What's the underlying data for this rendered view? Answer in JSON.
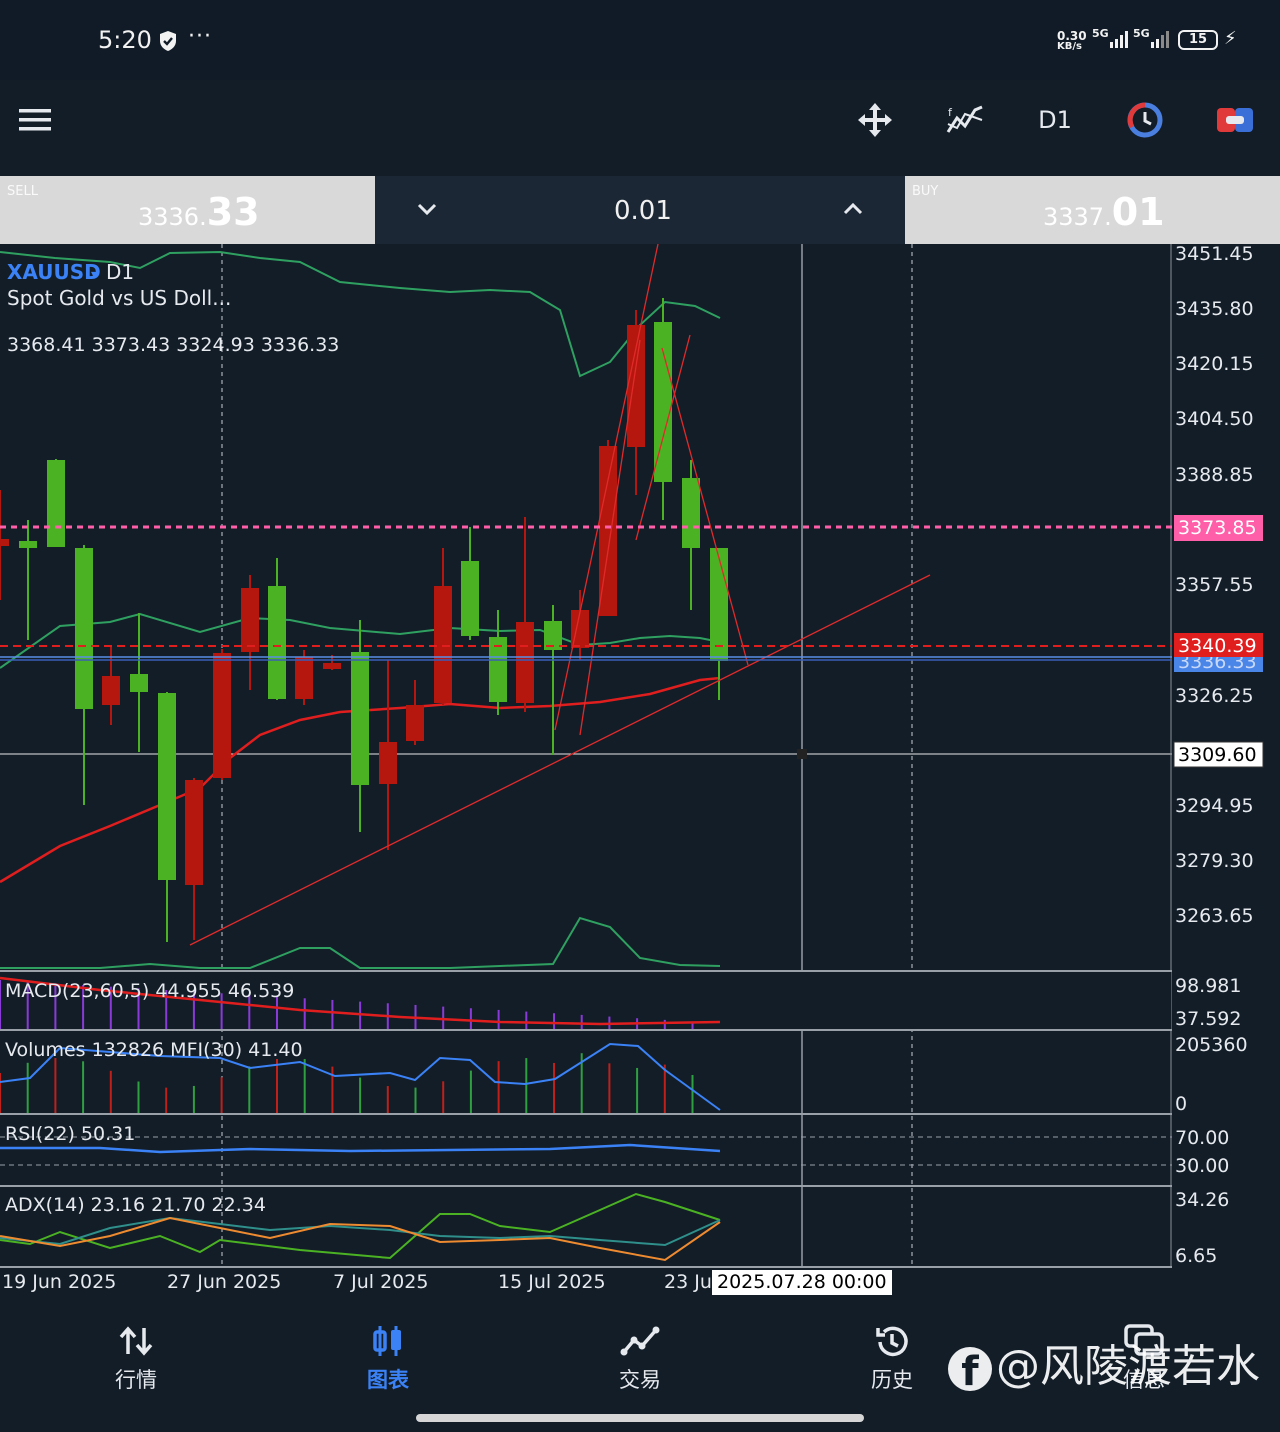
{
  "status_bar": {
    "time": "5:20",
    "net_speed_value": "0.30",
    "net_speed_unit": "KB/s",
    "sig1": "5G",
    "sig2": "5G",
    "battery": "15"
  },
  "toolbar": {
    "timeframe": "D1",
    "icons": [
      "menu-icon",
      "crosshair-move-icon",
      "indicators-icon",
      "timer-icon",
      "one-click-trading-icon"
    ]
  },
  "trade_bar": {
    "sell_label": "SELL",
    "sell_price_prefix": "3336.",
    "sell_price_big": "33",
    "buy_label": "BUY",
    "buy_price_prefix": "3337.",
    "buy_price_big": "01",
    "lot": "0.01"
  },
  "chart": {
    "symbol": "XAUUSD",
    "symbol_caret": "▾",
    "timeframe": "D1",
    "description": "Spot Gold vs US Doll...",
    "ohlc": "3368.41 3373.43 3324.93 3336.33",
    "price_labels": [
      "3451.45",
      "3435.80",
      "3420.15",
      "3404.50",
      "3388.85",
      "3373.85",
      "3357.55",
      "3340.39",
      "3336.33",
      "3326.25",
      "3309.60",
      "3294.95",
      "3279.30",
      "3263.65"
    ],
    "badges": {
      "pink_line": "3373.85",
      "red_line": "3340.39",
      "bid_line": "3336.33",
      "crosshair": "3309.60"
    },
    "date_labels": [
      "19 Jun 2025",
      "27 Jun 2025",
      "7 Jul 2025",
      "15 Jul 2025",
      "23 Ju"
    ],
    "crosshair_date": "2025.07.28 00:00",
    "colors": {
      "bull": "#4bb223",
      "bear": "#b5170f",
      "bands": "#2fa060",
      "ma": "#e01e1e",
      "pink": "#ff5ea8",
      "bid": "#5b8ee6"
    }
  },
  "indicators": {
    "macd": {
      "label": "MACD(23,60,5) 44.955 46.539",
      "scale_top": "98.981",
      "scale_bottom": "37.592"
    },
    "volumes": {
      "label": "Volumes 132826 MFI(30) 41.40",
      "scale_top": "205360",
      "scale_bottom": "0"
    },
    "rsi": {
      "label": "RSI(22) 50.31",
      "scale_top": "70.00",
      "scale_bottom": "30.00"
    },
    "adx": {
      "label": "ADX(14) 23.16 21.70 22.34",
      "scale_top": "34.26",
      "scale_bottom": "6.65"
    }
  },
  "bottom_nav": {
    "items": [
      {
        "label": "行情",
        "icon": "quotes-icon"
      },
      {
        "label": "图表",
        "icon": "chart-icon"
      },
      {
        "label": "交易",
        "icon": "trade-icon"
      },
      {
        "label": "历史",
        "icon": "history-icon"
      },
      {
        "label": "信息",
        "icon": "messages-icon"
      }
    ],
    "active": "图表"
  },
  "watermark": "@风陵渡若水"
}
